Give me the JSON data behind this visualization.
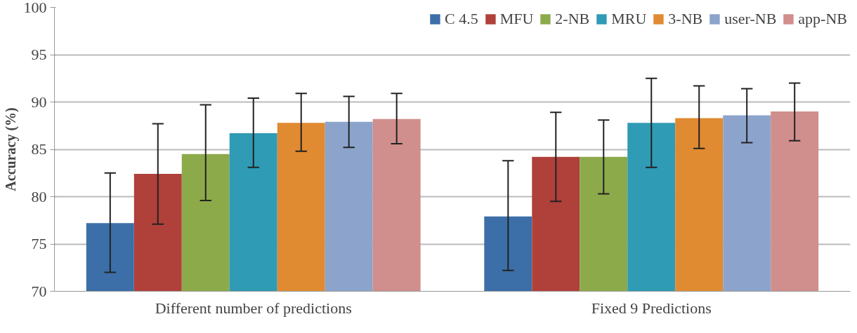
{
  "chart_data": {
    "type": "bar",
    "ylabel": "Accuracy (%)",
    "categories": [
      "Different number of predictions",
      "Fixed 9 Predictions"
    ],
    "series": [
      {
        "name": "C 4.5",
        "color": "#3c6fa8",
        "values": [
          77.2,
          77.9
        ],
        "errors": [
          [
            72.0,
            82.5
          ],
          [
            72.2,
            83.8
          ]
        ]
      },
      {
        "name": "MFU",
        "color": "#b0403a",
        "values": [
          82.4,
          84.2
        ],
        "errors": [
          [
            77.1,
            87.7
          ],
          [
            79.5,
            88.9
          ]
        ]
      },
      {
        "name": "2-NB",
        "color": "#8caa4a",
        "values": [
          84.5,
          84.2
        ],
        "errors": [
          [
            79.6,
            89.7
          ],
          [
            80.3,
            88.1
          ]
        ]
      },
      {
        "name": "MRU",
        "color": "#2f9bb5",
        "values": [
          86.7,
          87.8
        ],
        "errors": [
          [
            83.1,
            90.4
          ],
          [
            83.1,
            92.5
          ]
        ]
      },
      {
        "name": "3-NB",
        "color": "#e08a32",
        "values": [
          87.8,
          88.3
        ],
        "errors": [
          [
            84.8,
            90.9
          ],
          [
            85.1,
            91.7
          ]
        ]
      },
      {
        "name": "user-NB",
        "color": "#8ca4cc",
        "values": [
          87.9,
          88.6
        ],
        "errors": [
          [
            85.2,
            90.6
          ],
          [
            85.7,
            91.4
          ]
        ]
      },
      {
        "name": "app-NB",
        "color": "#d08e8c",
        "values": [
          88.2,
          89.0
        ],
        "errors": [
          [
            85.6,
            90.9
          ],
          [
            85.9,
            92.0
          ]
        ]
      }
    ],
    "ylim": [
      70,
      100
    ],
    "yticks": [
      70,
      75,
      80,
      85,
      90,
      95,
      100
    ],
    "grid": "y",
    "legend": "top"
  }
}
